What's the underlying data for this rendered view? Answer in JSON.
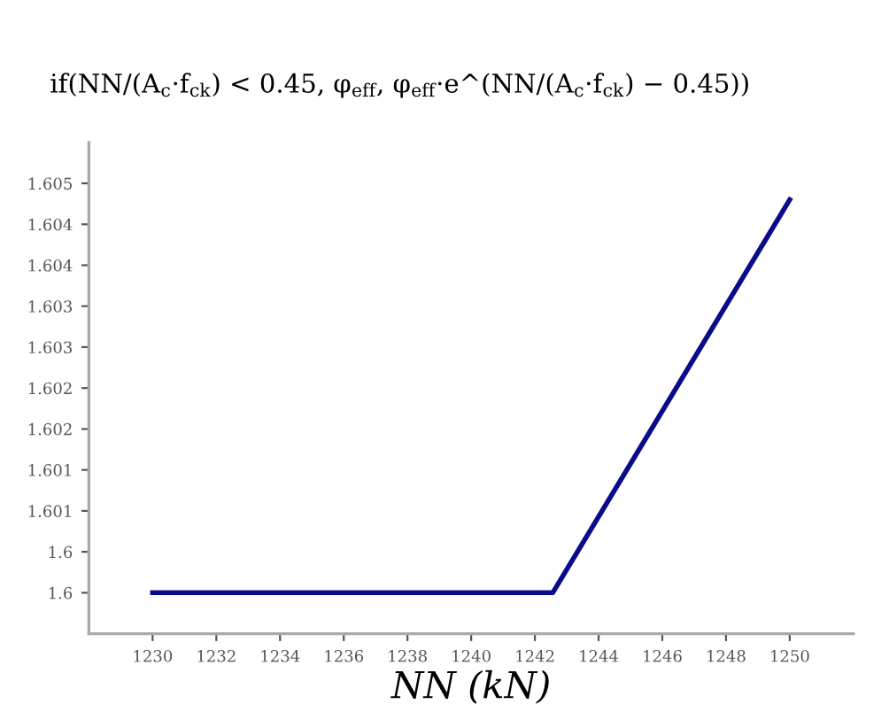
{
  "chart_data": {
    "type": "line",
    "ylabel": "if(NN/(A$_{c}$·f$_{ck}$) < 0.45, φ$_{eff}$, φ$_{eff}$·e^(NN/(A$_{c}$·f$_{ck}$) − 0.45))",
    "xlabel": "NN (kN)",
    "x": [
      1230,
      1242.56,
      1250
    ],
    "series": [
      {
        "color": "#0a0a8c",
        "values": [
          1.6,
          1.6,
          1.6048
        ]
      }
    ],
    "xlim": [
      1228,
      1252
    ],
    "xticks": [
      1230,
      1232,
      1234,
      1236,
      1238,
      1240,
      1242,
      1244,
      1246,
      1248,
      1250
    ],
    "ylim": [
      1.5995,
      1.6055
    ],
    "yticks": [
      {
        "value": 1.6,
        "label": "1.6"
      },
      {
        "value": 1.6005,
        "label": "1.6"
      },
      {
        "value": 1.601,
        "label": "1.601"
      },
      {
        "value": 1.6015,
        "label": "1.601"
      },
      {
        "value": 1.602,
        "label": "1.602"
      },
      {
        "value": 1.6025,
        "label": "1.602"
      },
      {
        "value": 1.603,
        "label": "1.603"
      },
      {
        "value": 1.6035,
        "label": "1.603"
      },
      {
        "value": 1.604,
        "label": "1.604"
      },
      {
        "value": 1.6045,
        "label": "1.604"
      },
      {
        "value": 1.605,
        "label": "1.605"
      }
    ],
    "grid": false,
    "legend": false,
    "marker": "none",
    "line_style": "solid"
  }
}
